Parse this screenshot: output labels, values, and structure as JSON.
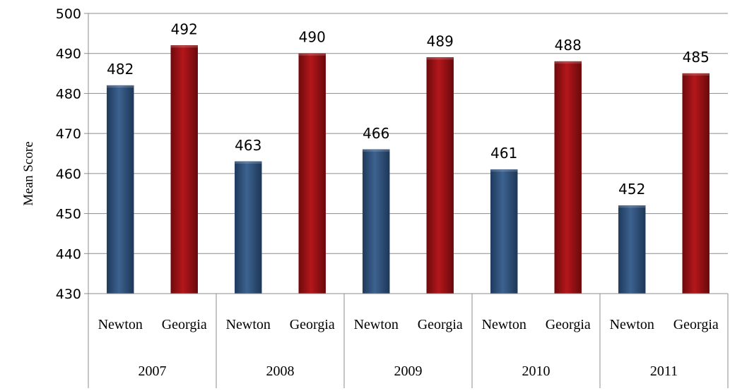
{
  "chart_data": {
    "type": "bar",
    "title": "",
    "ylabel": "Mean Score",
    "xlabel": "",
    "ylim": [
      430,
      500
    ],
    "yticks": [
      430,
      440,
      450,
      460,
      470,
      480,
      490,
      500
    ],
    "grid": true,
    "legend": "none",
    "groups": [
      "2007",
      "2008",
      "2009",
      "2010",
      "2011"
    ],
    "subcategories": [
      "Newton",
      "Georgia"
    ],
    "series": [
      {
        "values": [
          482,
          463,
          466,
          461,
          452
        ],
        "color": "#2a4a73"
      },
      {
        "values": [
          492,
          490,
          489,
          488,
          485
        ],
        "color": "#8b0e10"
      }
    ]
  }
}
